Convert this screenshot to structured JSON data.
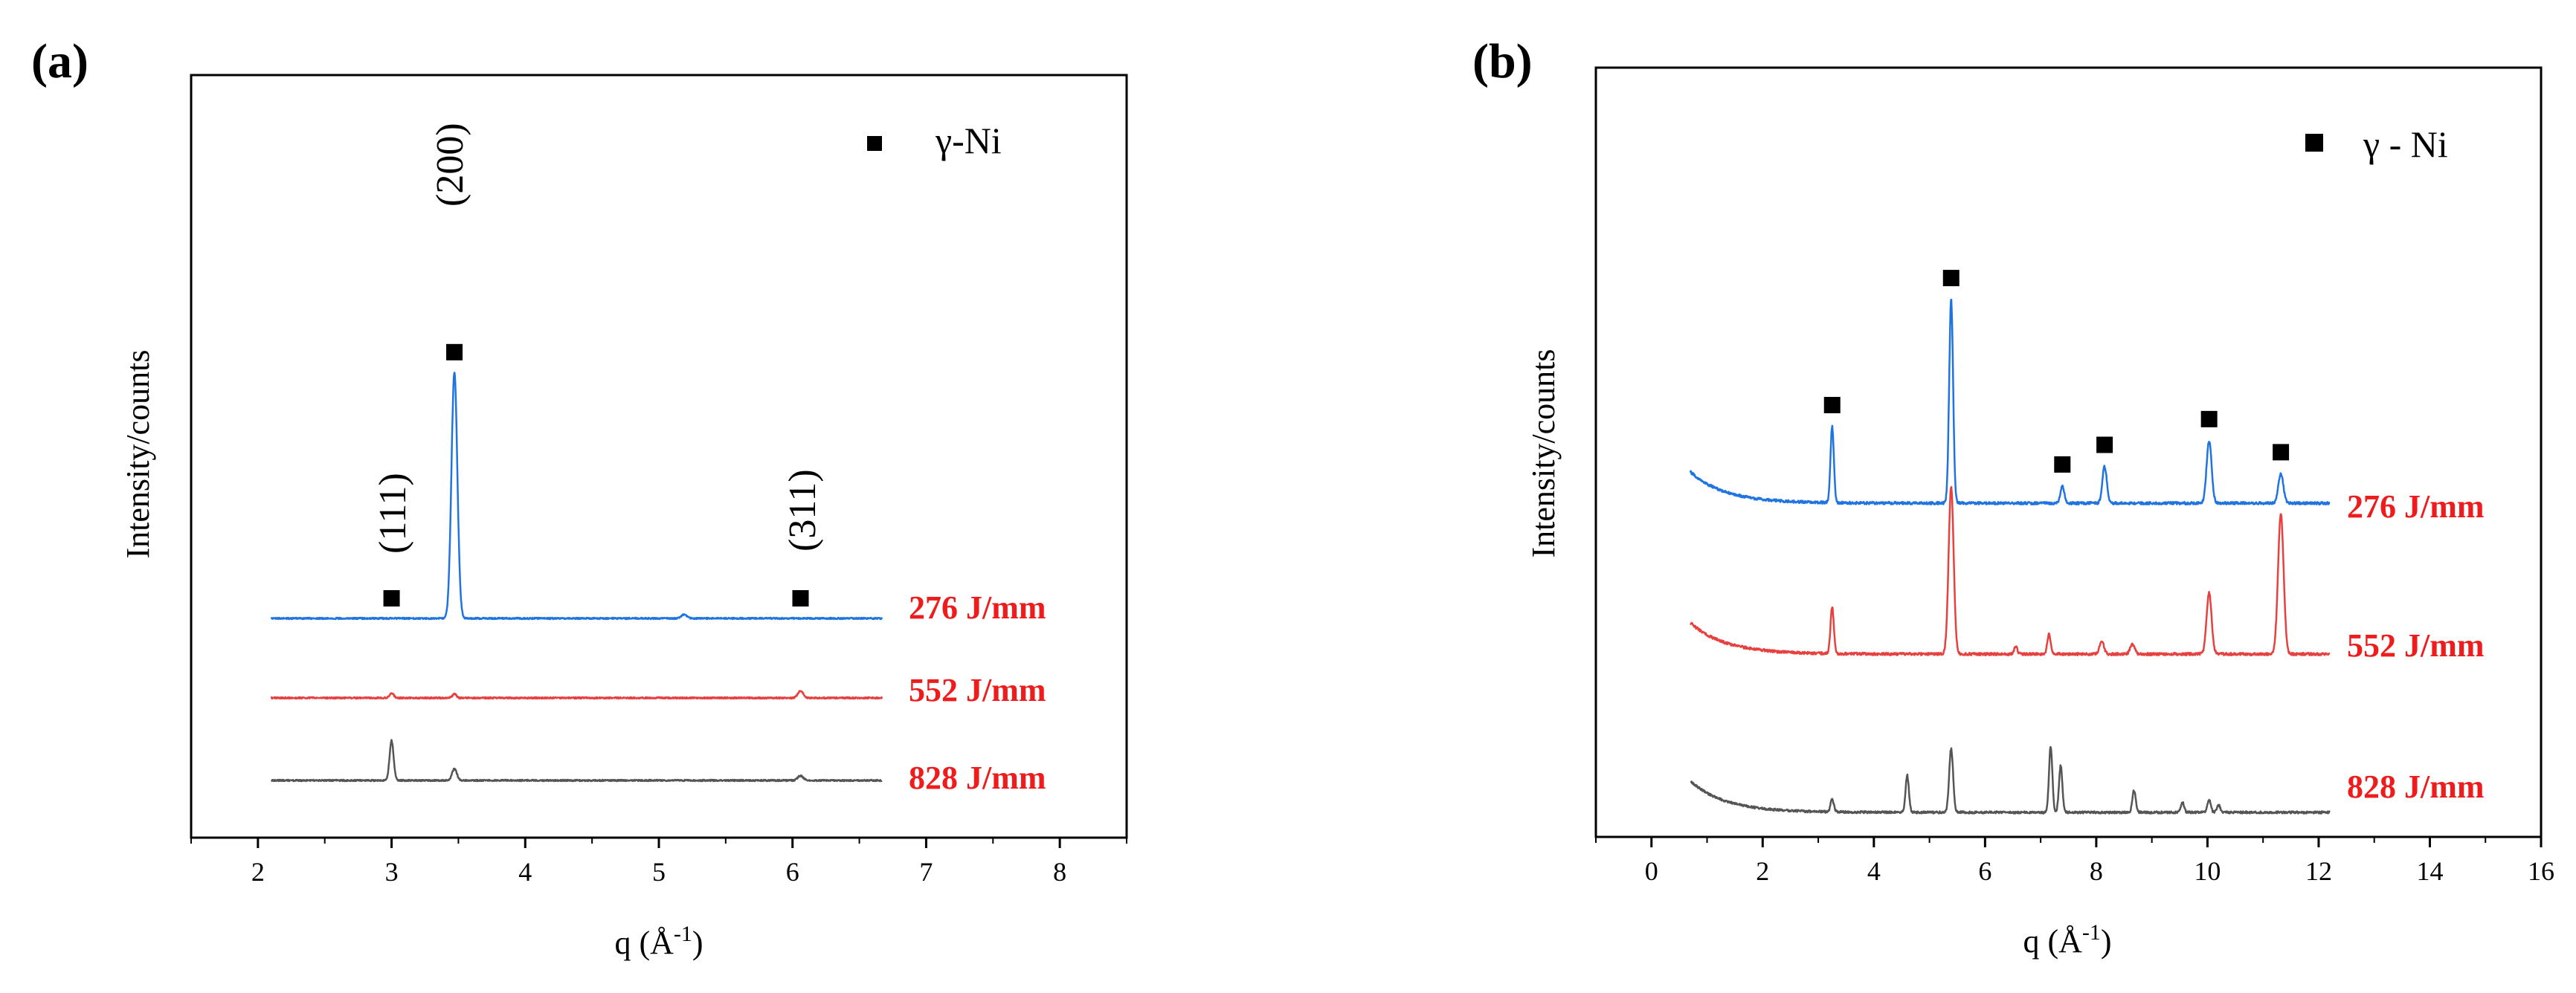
{
  "figure_caption": "",
  "chart_data": [
    {
      "panel": "(a)",
      "type": "line",
      "title": "",
      "xlabel": "q (Å",
      "xlabel_sup": "-1",
      "xlabel_close": ")",
      "ylabel": "Intensity/counts",
      "xlim": [
        1.5,
        8.5
      ],
      "x_ticks": [
        2,
        3,
        4,
        5,
        6,
        7,
        8
      ],
      "grid": false,
      "legend": {
        "position": "top-right",
        "marker": "square",
        "label": "γ-Ni"
      },
      "peak_labels": [
        {
          "text": "(111)",
          "q": 3.0
        },
        {
          "text": "(200)",
          "q": 3.47
        },
        {
          "text": "(311)",
          "q": 6.06
        }
      ],
      "series": [
        {
          "name": "276 J/mm",
          "color": "#1f74e0",
          "baseline": 0.0,
          "q_range": [
            2.1,
            6.67
          ],
          "peaks": [
            {
              "q": 3.47,
              "height": 9.6,
              "width": 0.022
            },
            {
              "q": 5.19,
              "height": 0.15,
              "width": 0.02
            }
          ],
          "markers": [
            3.0,
            3.47,
            6.06
          ]
        },
        {
          "name": "552 J/mm",
          "color": "#e8403f",
          "baseline": -2.4,
          "q_range": [
            2.1,
            6.67
          ],
          "peaks": [
            {
              "q": 3.0,
              "height": 0.2,
              "width": 0.015
            },
            {
              "q": 3.47,
              "height": 0.15,
              "width": 0.015
            },
            {
              "q": 6.06,
              "height": 0.28,
              "width": 0.02
            }
          ],
          "markers": []
        },
        {
          "name": "828 J/mm",
          "color": "#555555",
          "baseline": -4.9,
          "q_range": [
            2.1,
            6.67
          ],
          "peaks": [
            {
              "q": 3.0,
              "height": 1.55,
              "width": 0.015
            },
            {
              "q": 3.47,
              "height": 0.45,
              "width": 0.018
            },
            {
              "q": 6.06,
              "height": 0.18,
              "width": 0.02
            }
          ],
          "markers": []
        }
      ]
    },
    {
      "panel": "(b)",
      "type": "line",
      "title": "",
      "xlabel": "q (Å",
      "xlabel_sup": "-1",
      "xlabel_close": ")",
      "ylabel": "Intensity/counts",
      "xlim": [
        -1,
        16
      ],
      "x_ticks": [
        0,
        2,
        4,
        6,
        8,
        10,
        12,
        14,
        16
      ],
      "grid": false,
      "legend": {
        "position": "top-right",
        "marker": "square",
        "label": "γ - Ni"
      },
      "series": [
        {
          "name": "276 J/mm",
          "color": "#1f74e0",
          "baseline": 0.0,
          "q_range": [
            0.7,
            12.2
          ],
          "peaks": [
            {
              "q": 3.25,
              "height": 3.1,
              "width": 0.03
            },
            {
              "q": 5.39,
              "height": 8.3,
              "width": 0.035
            },
            {
              "q": 7.39,
              "height": 0.7,
              "width": 0.035
            },
            {
              "q": 8.15,
              "height": 1.5,
              "width": 0.04
            },
            {
              "q": 10.03,
              "height": 2.55,
              "width": 0.045
            },
            {
              "q": 11.32,
              "height": 1.2,
              "width": 0.045
            }
          ],
          "markers": [
            3.25,
            5.39,
            7.39,
            8.15,
            10.03,
            11.32
          ]
        },
        {
          "name": "552 J/mm",
          "color": "#e8403f",
          "baseline": -4.6,
          "q_range": [
            0.7,
            12.2
          ],
          "peaks": [
            {
              "q": 3.25,
              "height": 1.9,
              "width": 0.03
            },
            {
              "q": 5.39,
              "height": 6.8,
              "width": 0.045
            },
            {
              "q": 6.55,
              "height": 0.3,
              "width": 0.03
            },
            {
              "q": 7.15,
              "height": 0.8,
              "width": 0.03
            },
            {
              "q": 8.1,
              "height": 0.5,
              "width": 0.04
            },
            {
              "q": 8.65,
              "height": 0.4,
              "width": 0.04
            },
            {
              "q": 10.03,
              "height": 2.5,
              "width": 0.045
            },
            {
              "q": 11.32,
              "height": 5.7,
              "width": 0.05
            }
          ],
          "markers": []
        },
        {
          "name": "828 J/mm",
          "color": "#555555",
          "baseline": -8.8,
          "q_range": [
            0.7,
            12.2
          ],
          "peaks": [
            {
              "q": 3.25,
              "height": 0.5,
              "width": 0.03
            },
            {
              "q": 4.6,
              "height": 1.5,
              "width": 0.03
            },
            {
              "q": 5.39,
              "height": 2.6,
              "width": 0.035
            },
            {
              "q": 7.18,
              "height": 2.7,
              "width": 0.03
            },
            {
              "q": 7.36,
              "height": 1.9,
              "width": 0.03
            },
            {
              "q": 8.68,
              "height": 0.9,
              "width": 0.03
            },
            {
              "q": 9.55,
              "height": 0.4,
              "width": 0.03
            },
            {
              "q": 10.03,
              "height": 0.5,
              "width": 0.03
            },
            {
              "q": 10.2,
              "height": 0.3,
              "width": 0.03
            }
          ],
          "markers": []
        }
      ]
    }
  ]
}
